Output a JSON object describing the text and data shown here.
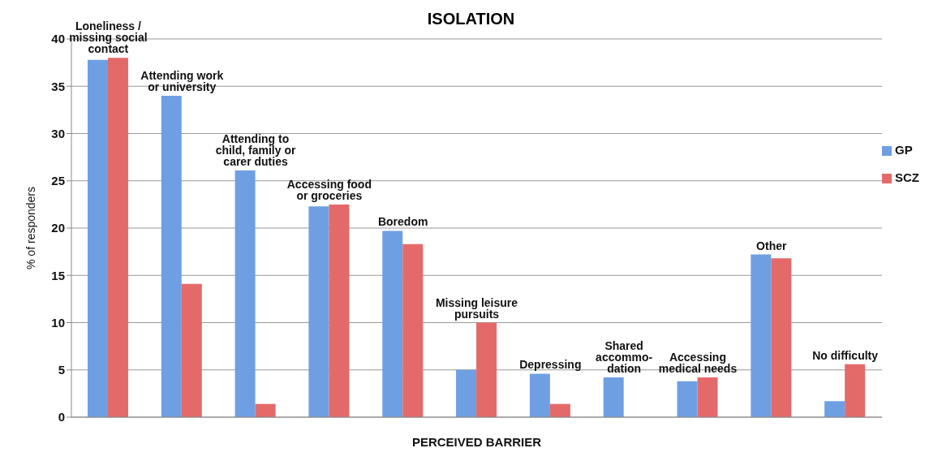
{
  "chart_data": {
    "type": "bar",
    "title": "ISOLATION",
    "xlabel": "PERCEIVED BARRIER",
    "ylabel": "% of responders",
    "categories": [
      "Loneliness / missing social contact",
      "Attending work or university",
      "Attending to child, family or carer duties",
      "Accessing food or groceries",
      "Boredom",
      "Missing leisure pursuits",
      "Depressing",
      "Shared accommo- dation",
      "Accessing medical needs",
      "Other",
      "No difficulty"
    ],
    "series": [
      {
        "name": "GP",
        "color": "#6f9fe3",
        "values": [
          37.8,
          34,
          26.1,
          22.3,
          19.7,
          5,
          4.6,
          4.2,
          3.8,
          17.2,
          1.7
        ]
      },
      {
        "name": "SCZ",
        "color": "#e46a6a",
        "values": [
          38,
          14.1,
          1.4,
          22.5,
          18.3,
          10,
          1.4,
          0,
          4.2,
          16.8,
          5.6
        ]
      }
    ],
    "ylim": [
      0,
      40
    ],
    "yticks": [
      0,
      5,
      10,
      15,
      20,
      25,
      30,
      35,
      40
    ],
    "grid": "y",
    "legend": "right"
  }
}
